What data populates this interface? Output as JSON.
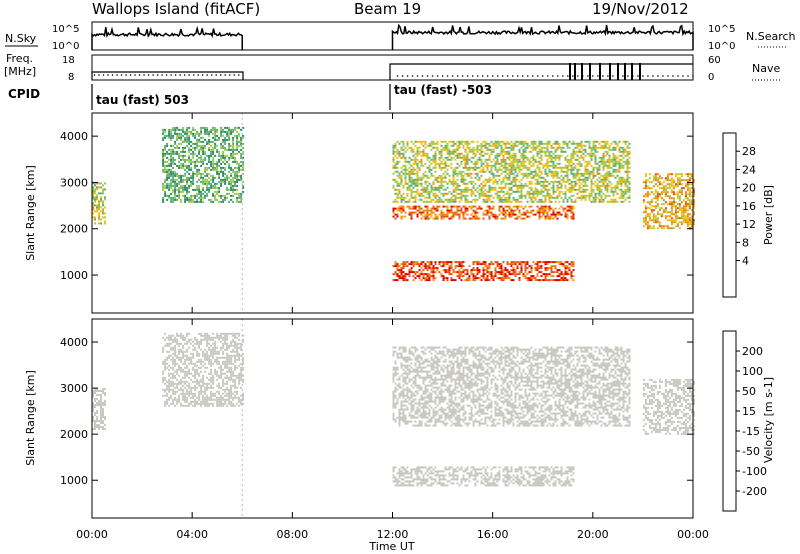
{
  "header": {
    "site": "Wallops Island (fitACF)",
    "beam": "Beam 19",
    "date": "19/Nov/2012"
  },
  "top_panels": {
    "nsky_label": "N.Sky",
    "nsearch_label": "N.Search",
    "nsky_ticks": [
      "10^5",
      "10^0"
    ],
    "freq_label_1": "Freq.",
    "freq_label_2": "[MHz]",
    "freq_ticks": [
      "18",
      "8"
    ],
    "nave_label": "Nave",
    "nave_ticks": [
      "60",
      "0"
    ],
    "cpid_label": "CPID",
    "cpid_1": "tau (fast) 503",
    "cpid_2": "tau (fast) -503"
  },
  "x_axis": {
    "label": "Time UT",
    "ticks": [
      "00:00",
      "04:00",
      "08:00",
      "12:00",
      "16:00",
      "20:00",
      "00:00"
    ]
  },
  "power_panel": {
    "ylabel": "Slant Range [km]",
    "yticks": [
      "4000",
      "3000",
      "2000",
      "1000"
    ],
    "colorbar_label": "Power [dB]",
    "colorbar_ticks": [
      "28",
      "24",
      "20",
      "16",
      "12",
      "8",
      "4"
    ],
    "colors": [
      "#0020d0",
      "#2a56b0",
      "#2e8a6a",
      "#5ab07a",
      "#a0c850",
      "#f0c010",
      "#f08a10",
      "#e8501a",
      "#e00000"
    ]
  },
  "velocity_panel": {
    "ylabel": "Slant Range [km]",
    "yticks": [
      "4000",
      "3000",
      "2000",
      "1000"
    ],
    "colorbar_label": "Velocity [m s-1]",
    "colorbar_ticks": [
      "200",
      "100",
      "50",
      "15",
      "-15",
      "-50",
      "-100",
      "-200"
    ],
    "colors": [
      "#1a3aa8",
      "#2e7ab8",
      "#3a9a6a",
      "#7ad040",
      "#c8c8c0",
      "#f0c030",
      "#f08a10",
      "#f04a10",
      "#e00000"
    ]
  },
  "chart_data": {
    "type": "heatmap",
    "x_range_hours": [
      0,
      24
    ],
    "y_range_km": [
      180,
      4500
    ],
    "data_gap_hours": [
      6,
      12
    ],
    "power_features": [
      {
        "t0": 0.0,
        "t1": 0.5,
        "r0": 2100,
        "r1": 3000,
        "power_db": 18
      },
      {
        "t0": 2.8,
        "t1": 6.0,
        "r0": 2600,
        "r1": 4200,
        "power_db": 14
      },
      {
        "t0": 12.0,
        "t1": 19.2,
        "r0": 900,
        "r1": 1300,
        "power_db": 28
      },
      {
        "t0": 12.0,
        "t1": 19.2,
        "r0": 2200,
        "r1": 2500,
        "power_db": 26
      },
      {
        "t0": 12.0,
        "t1": 21.5,
        "r0": 2600,
        "r1": 3900,
        "power_db": 18
      },
      {
        "t0": 22.0,
        "t1": 24.0,
        "r0": 2000,
        "r1": 3200,
        "power_db": 22
      }
    ],
    "velocity_features": [
      {
        "t0": 0.0,
        "t1": 0.5,
        "r0": 2100,
        "r1": 3000,
        "velocity_ms": 0
      },
      {
        "t0": 2.8,
        "t1": 6.0,
        "r0": 2600,
        "r1": 4200,
        "velocity_ms": 0
      },
      {
        "t0": 12.0,
        "t1": 19.2,
        "r0": 900,
        "r1": 1300,
        "velocity_ms": 0
      },
      {
        "t0": 12.0,
        "t1": 21.5,
        "r0": 2200,
        "r1": 3900,
        "velocity_ms": 0
      },
      {
        "t0": 22.0,
        "t1": 24.0,
        "r0": 2000,
        "r1": 3200,
        "velocity_ms": 0
      }
    ]
  }
}
